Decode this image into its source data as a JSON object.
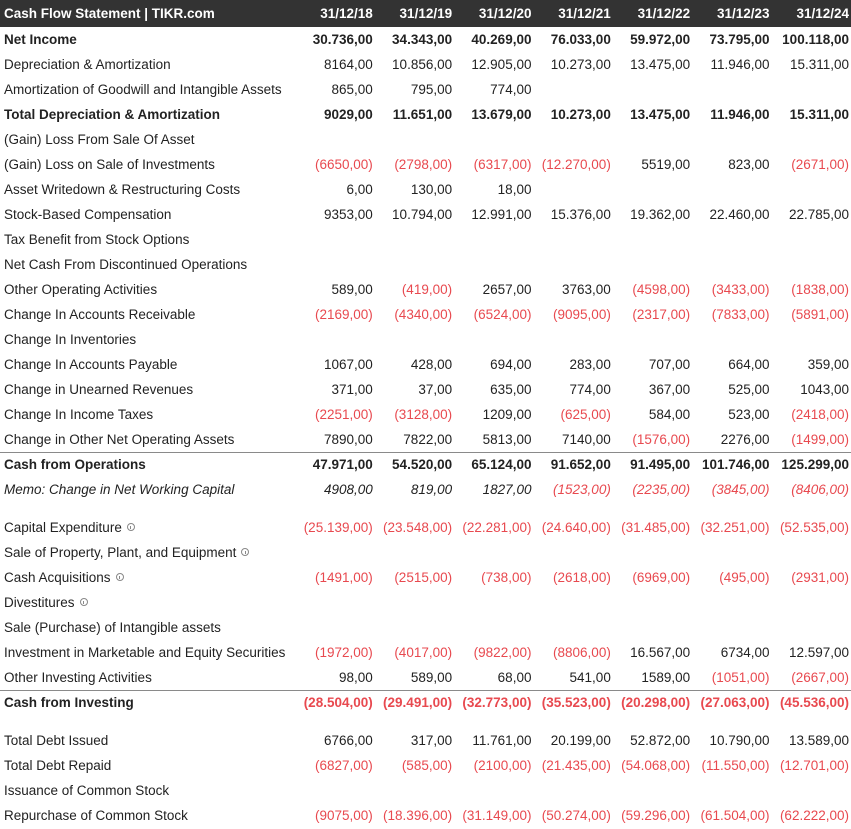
{
  "header": {
    "title": "Cash Flow Statement | TIKR.com",
    "periods": [
      "31/12/18",
      "31/12/19",
      "31/12/20",
      "31/12/21",
      "31/12/22",
      "31/12/23",
      "31/12/24"
    ]
  },
  "colors": {
    "header_bg": "#333333",
    "negative": "#e8494f",
    "text": "#222222"
  },
  "rows": [
    {
      "label": "Net Income",
      "style": "bold",
      "values": [
        "30.736,00",
        "34.343,00",
        "40.269,00",
        "76.033,00",
        "59.972,00",
        "73.795,00",
        "100.118,00"
      ]
    },
    {
      "label": "Depreciation & Amortization",
      "values": [
        "8164,00",
        "10.856,00",
        "12.905,00",
        "10.273,00",
        "13.475,00",
        "11.946,00",
        "15.311,00"
      ]
    },
    {
      "label": "Amortization of Goodwill and Intangible Assets",
      "values": [
        "865,00",
        "795,00",
        "774,00",
        "",
        "",
        "",
        ""
      ]
    },
    {
      "label": "Total Depreciation & Amortization",
      "style": "bold",
      "values": [
        "9029,00",
        "11.651,00",
        "13.679,00",
        "10.273,00",
        "13.475,00",
        "11.946,00",
        "15.311,00"
      ]
    },
    {
      "label": "(Gain) Loss From Sale Of Asset",
      "values": [
        "",
        "",
        "",
        "",
        "",
        "",
        ""
      ]
    },
    {
      "label": "(Gain) Loss on Sale of Investments",
      "values": [
        "(6650,00)",
        "(2798,00)",
        "(6317,00)",
        "(12.270,00)",
        "5519,00",
        "823,00",
        "(2671,00)"
      ]
    },
    {
      "label": "Asset Writedown & Restructuring Costs",
      "values": [
        "6,00",
        "130,00",
        "18,00",
        "",
        "",
        "",
        ""
      ]
    },
    {
      "label": "Stock-Based Compensation",
      "values": [
        "9353,00",
        "10.794,00",
        "12.991,00",
        "15.376,00",
        "19.362,00",
        "22.460,00",
        "22.785,00"
      ]
    },
    {
      "label": "Tax Benefit from Stock Options",
      "values": [
        "",
        "",
        "",
        "",
        "",
        "",
        ""
      ]
    },
    {
      "label": "Net Cash From Discontinued Operations",
      "values": [
        "",
        "",
        "",
        "",
        "",
        "",
        ""
      ]
    },
    {
      "label": "Other Operating Activities",
      "values": [
        "589,00",
        "(419,00)",
        "2657,00",
        "3763,00",
        "(4598,00)",
        "(3433,00)",
        "(1838,00)"
      ]
    },
    {
      "label": "Change In Accounts Receivable",
      "values": [
        "(2169,00)",
        "(4340,00)",
        "(6524,00)",
        "(9095,00)",
        "(2317,00)",
        "(7833,00)",
        "(5891,00)"
      ]
    },
    {
      "label": "Change In Inventories",
      "values": [
        "",
        "",
        "",
        "",
        "",
        "",
        ""
      ]
    },
    {
      "label": "Change In Accounts Payable",
      "values": [
        "1067,00",
        "428,00",
        "694,00",
        "283,00",
        "707,00",
        "664,00",
        "359,00"
      ]
    },
    {
      "label": "Change in Unearned Revenues",
      "values": [
        "371,00",
        "37,00",
        "635,00",
        "774,00",
        "367,00",
        "525,00",
        "1043,00"
      ]
    },
    {
      "label": "Change In Income Taxes",
      "values": [
        "(2251,00)",
        "(3128,00)",
        "1209,00",
        "(625,00)",
        "584,00",
        "523,00",
        "(2418,00)"
      ]
    },
    {
      "label": "Change in Other Net Operating Assets",
      "values": [
        "7890,00",
        "7822,00",
        "5813,00",
        "7140,00",
        "(1576,00)",
        "2276,00",
        "(1499,00)"
      ]
    },
    {
      "label": "Cash from Operations",
      "style": "bold",
      "topline": true,
      "values": [
        "47.971,00",
        "54.520,00",
        "65.124,00",
        "91.652,00",
        "91.495,00",
        "101.746,00",
        "125.299,00"
      ]
    },
    {
      "label": "Memo: Change in Net Working Capital",
      "style": "italic",
      "values": [
        "4908,00",
        "819,00",
        "1827,00",
        "(1523,00)",
        "(2235,00)",
        "(3845,00)",
        "(8406,00)"
      ]
    },
    {
      "spacer": true
    },
    {
      "label": "Capital Expenditure",
      "info": true,
      "values": [
        "(25.139,00)",
        "(23.548,00)",
        "(22.281,00)",
        "(24.640,00)",
        "(31.485,00)",
        "(32.251,00)",
        "(52.535,00)"
      ]
    },
    {
      "label": "Sale of Property, Plant, and Equipment",
      "info": true,
      "values": [
        "",
        "",
        "",
        "",
        "",
        "",
        ""
      ]
    },
    {
      "label": "Cash Acquisitions",
      "info": true,
      "values": [
        "(1491,00)",
        "(2515,00)",
        "(738,00)",
        "(2618,00)",
        "(6969,00)",
        "(495,00)",
        "(2931,00)"
      ]
    },
    {
      "label": "Divestitures",
      "info": true,
      "values": [
        "",
        "",
        "",
        "",
        "",
        "",
        ""
      ]
    },
    {
      "label": "Sale (Purchase) of Intangible assets",
      "values": [
        "",
        "",
        "",
        "",
        "",
        "",
        ""
      ]
    },
    {
      "label": "Investment in Marketable and Equity Securities",
      "values": [
        "(1972,00)",
        "(4017,00)",
        "(9822,00)",
        "(8806,00)",
        "16.567,00",
        "6734,00",
        "12.597,00"
      ]
    },
    {
      "label": "Other Investing Activities",
      "values": [
        "98,00",
        "589,00",
        "68,00",
        "541,00",
        "1589,00",
        "(1051,00)",
        "(2667,00)"
      ]
    },
    {
      "label": "Cash from Investing",
      "style": "bold",
      "topline": true,
      "values": [
        "(28.504,00)",
        "(29.491,00)",
        "(32.773,00)",
        "(35.523,00)",
        "(20.298,00)",
        "(27.063,00)",
        "(45.536,00)"
      ]
    },
    {
      "spacer": true
    },
    {
      "label": "Total Debt Issued",
      "values": [
        "6766,00",
        "317,00",
        "11.761,00",
        "20.199,00",
        "52.872,00",
        "10.790,00",
        "13.589,00"
      ]
    },
    {
      "label": "Total Debt Repaid",
      "values": [
        "(6827,00)",
        "(585,00)",
        "(2100,00)",
        "(21.435,00)",
        "(54.068,00)",
        "(11.550,00)",
        "(12.701,00)"
      ]
    },
    {
      "label": "Issuance of Common Stock",
      "values": [
        "",
        "",
        "",
        "",
        "",
        "",
        ""
      ]
    },
    {
      "label": "Repurchase of Common Stock",
      "values": [
        "(9075,00)",
        "(18.396,00)",
        "(31.149,00)",
        "(50.274,00)",
        "(59.296,00)",
        "(61.504,00)",
        "(62.222,00)"
      ]
    }
  ]
}
